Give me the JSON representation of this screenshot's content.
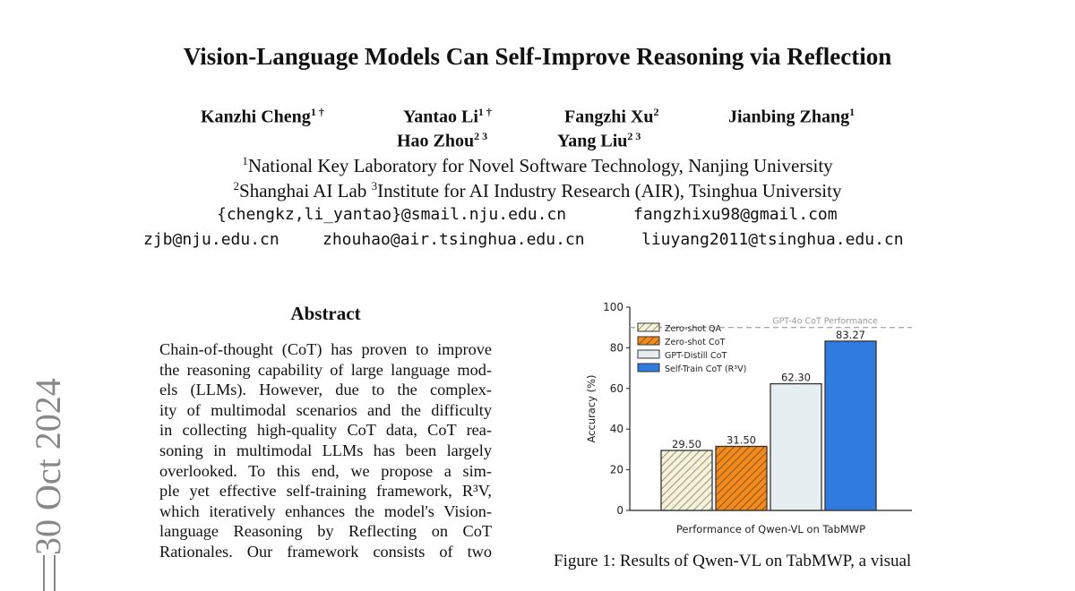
{
  "paper": {
    "title": "Vision-Language Models Can Self-Improve Reasoning via Reflection",
    "authors": [
      {
        "name": "Kanzhi Cheng",
        "sup": "1 †"
      },
      {
        "name": "Yantao Li",
        "sup": "1 †"
      },
      {
        "name": "Fangzhi Xu",
        "sup": "2"
      },
      {
        "name": "Jianbing Zhang",
        "sup": "1"
      },
      {
        "name": "Hao Zhou",
        "sup": "2 3"
      },
      {
        "name": "Yang Liu",
        "sup": "2 3"
      }
    ],
    "affiliations": [
      {
        "sup": "1",
        "text": "National Key Laboratory for Novel Software Technology, Nanjing University"
      },
      {
        "sup": "2",
        "text": "Shanghai AI Lab ",
        "sup2": "3",
        "text2": "Institute for AI Industry Research (AIR), Tsinghua University"
      }
    ],
    "emails": [
      "{chengkz,li_yantao}@smail.nju.edu.cn",
      "fangzhixu98@gmail.com",
      "zjb@nju.edu.cn",
      "zhouhao@air.tsinghua.edu.cn",
      "liuyang2011@tsinghua.edu.cn"
    ],
    "arxiv_stamp": "30 Oct 2024",
    "abstract_heading": "Abstract",
    "abstract_lines": [
      "Chain-of-thought (CoT) has proven to improve",
      "the reasoning capability of large language mod-",
      "els (LLMs).  However, due to the complex-",
      "ity of multimodal scenarios and the difficulty",
      "in collecting high-quality CoT data, CoT rea-",
      "soning in multimodal LLMs has been largely",
      "overlooked.  To this end, we propose a sim-",
      "ple yet effective self-training framework, R³V,",
      "which iteratively enhances the model's Vision-",
      "language Reasoning by Reflecting on CoT",
      "Rationales.  Our framework consists of two"
    ],
    "caption": "Figure 1: Results of Qwen-VL on TabMWP, a visual"
  },
  "chart_data": {
    "type": "bar",
    "xlabel": "Performance of Qwen-VL on TabMWP",
    "ylabel": "Accuracy (%)",
    "ylim": [
      0,
      100
    ],
    "yticks": [
      "0",
      "20",
      "40",
      "60",
      "80",
      "100"
    ],
    "categories": [
      "Zero-shot QA",
      "Zero-shot CoT",
      "GPT-Distill CoT",
      "Self-Train CoT (R³V)"
    ],
    "values": [
      29.5,
      31.5,
      62.3,
      83.27
    ],
    "value_labels": [
      "29.50",
      "31.50",
      "62.30",
      "83.27"
    ],
    "colors": [
      "#f5f2d8",
      "#f28a1e",
      "#e6eef2",
      "#2f7be0"
    ],
    "hatched": [
      true,
      true,
      false,
      false
    ],
    "reference_line": {
      "label": "GPT-4o CoT Performance",
      "value": 90
    },
    "legend_placement": "upper-left",
    "grid": false
  }
}
